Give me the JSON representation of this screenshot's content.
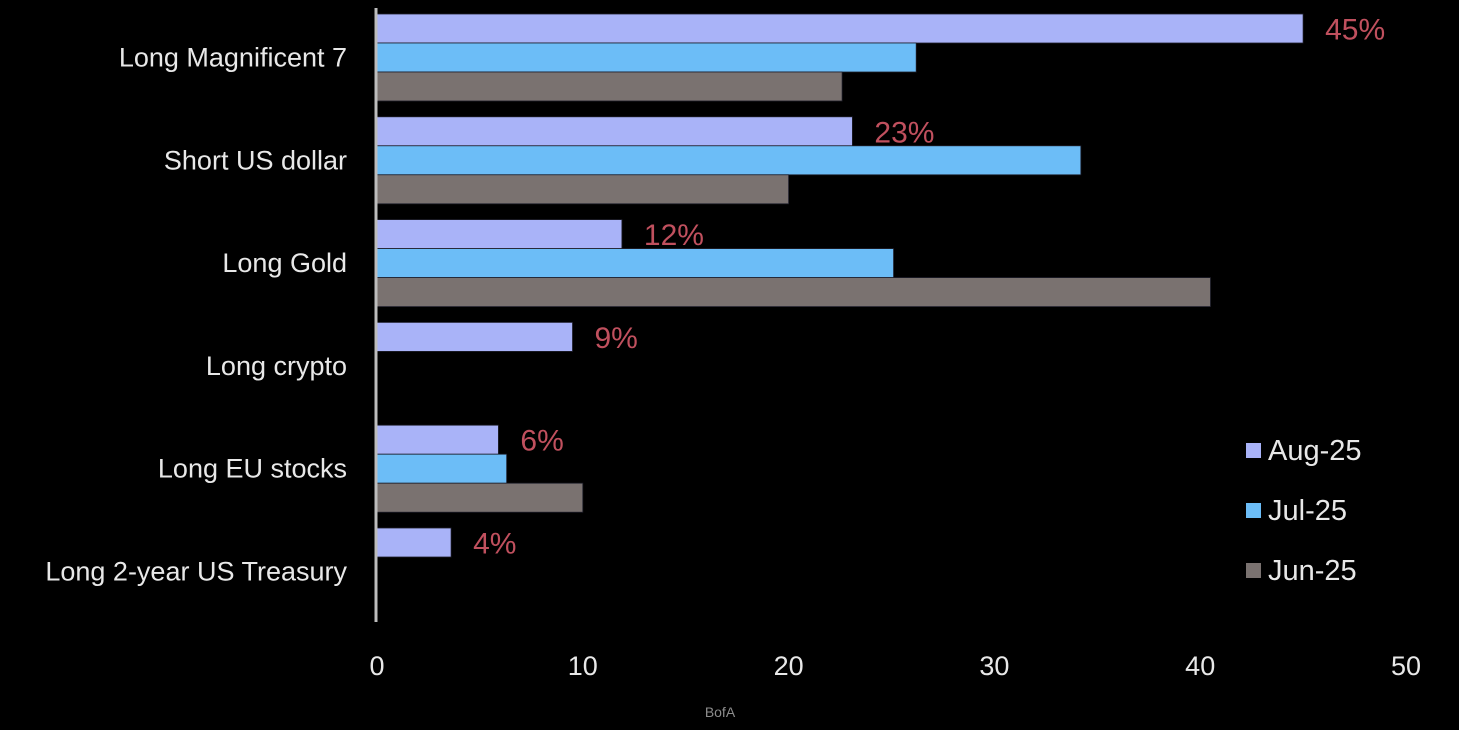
{
  "chart_data": {
    "type": "bar",
    "orientation": "horizontal",
    "categories": [
      "Long Magnificent 7",
      "Short US dollar",
      "Long Gold",
      "Long crypto",
      "Long EU stocks",
      "Long 2-year US Treasury"
    ],
    "series": [
      {
        "name": "Aug-25",
        "color": "#a9b3f8",
        "values": [
          45,
          23.1,
          11.9,
          9.5,
          5.9,
          3.6
        ]
      },
      {
        "name": "Jul-25",
        "color": "#6cbdf7",
        "values": [
          26.2,
          34.2,
          25.1,
          null,
          6.3,
          null
        ]
      },
      {
        "name": "Jun-25",
        "color": "#7a7270",
        "values": [
          22.6,
          20,
          40.5,
          null,
          10,
          null
        ]
      }
    ],
    "data_labels": [
      "45%",
      "23%",
      "12%",
      "9%",
      "6%",
      "4%"
    ],
    "xlim": [
      0,
      50
    ],
    "xticks": [
      "0",
      "10",
      "20",
      "30",
      "40",
      "50"
    ],
    "grid": false,
    "legend_position": "bottom-right",
    "label_color": "#c0505e"
  },
  "source": "BofA"
}
